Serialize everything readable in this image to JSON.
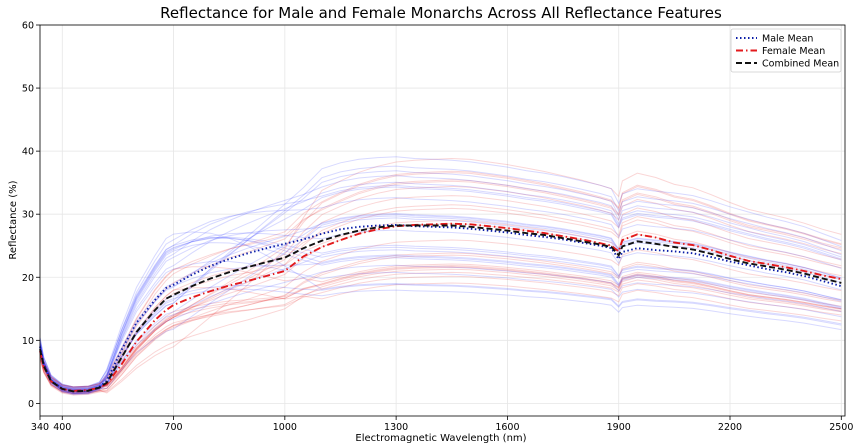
{
  "chart_data": {
    "type": "line",
    "title": "Reflectance for Male and Female Monarchs Across All Reflectance Features",
    "xlabel": "Electromagnetic Wavelength (nm)",
    "ylabel": "Reflectance (%)",
    "xlim": [
      340,
      2510
    ],
    "ylim": [
      -2,
      60
    ],
    "x_ticks": [
      340,
      400,
      700,
      1000,
      1300,
      1600,
      1900,
      2200,
      2500
    ],
    "y_ticks": [
      0,
      10,
      20,
      30,
      40,
      50,
      60
    ],
    "grid": true,
    "legend_position": "top-right",
    "x": [
      340,
      350,
      370,
      400,
      430,
      470,
      500,
      520,
      560,
      600,
      650,
      680,
      700,
      750,
      800,
      850,
      900,
      950,
      1000,
      1050,
      1100,
      1150,
      1200,
      1250,
      1300,
      1350,
      1400,
      1450,
      1500,
      1550,
      1600,
      1650,
      1700,
      1750,
      1800,
      1850,
      1880,
      1900,
      1910,
      1950,
      2000,
      2050,
      2100,
      2150,
      2200,
      2250,
      2300,
      2350,
      2400,
      2450,
      2500
    ],
    "series": [
      {
        "name": "Male Mean",
        "color": "#0b1ea8",
        "style": "dotted",
        "values": [
          9.0,
          6.2,
          3.6,
          2.3,
          1.9,
          2.0,
          2.6,
          3.6,
          8.5,
          12.8,
          16.4,
          18.3,
          18.8,
          20.4,
          21.8,
          22.9,
          23.8,
          24.6,
          25.3,
          26.0,
          26.9,
          27.6,
          28.0,
          28.2,
          28.3,
          28.1,
          28.0,
          27.9,
          27.7,
          27.4,
          27.1,
          26.7,
          26.4,
          26.0,
          25.5,
          25.0,
          24.6,
          22.9,
          24.0,
          24.6,
          24.3,
          24.1,
          23.8,
          23.2,
          22.5,
          21.9,
          21.3,
          20.8,
          20.2,
          19.4,
          18.6
        ]
      },
      {
        "name": "Female Mean",
        "color": "#e31a1c",
        "style": "dashdot",
        "values": [
          8.3,
          5.8,
          3.5,
          2.3,
          2.0,
          2.1,
          2.5,
          3.1,
          6.2,
          9.8,
          13.2,
          14.8,
          15.6,
          16.8,
          17.8,
          18.7,
          19.4,
          20.2,
          21.0,
          23.3,
          24.8,
          25.9,
          26.9,
          27.6,
          28.1,
          28.3,
          28.4,
          28.5,
          28.4,
          28.1,
          27.8,
          27.4,
          27.0,
          26.5,
          26.0,
          25.4,
          25.0,
          24.1,
          25.9,
          26.8,
          26.3,
          25.5,
          25.1,
          24.3,
          23.4,
          22.6,
          22.1,
          21.6,
          21.0,
          20.3,
          19.7
        ]
      },
      {
        "name": "Combined Mean",
        "color": "#111111",
        "style": "dashed",
        "values": [
          8.6,
          6.0,
          3.5,
          2.3,
          1.9,
          2.0,
          2.5,
          3.3,
          7.3,
          11.3,
          14.8,
          16.6,
          17.2,
          18.6,
          19.8,
          20.8,
          21.6,
          22.4,
          23.1,
          24.6,
          25.8,
          26.7,
          27.4,
          27.9,
          28.2,
          28.2,
          28.2,
          28.2,
          28.0,
          27.7,
          27.4,
          27.0,
          26.7,
          26.2,
          25.7,
          25.2,
          24.8,
          23.5,
          24.9,
          25.7,
          25.3,
          24.8,
          24.4,
          23.7,
          22.9,
          22.2,
          21.7,
          21.2,
          20.6,
          19.8,
          19.1
        ]
      }
    ]
  }
}
